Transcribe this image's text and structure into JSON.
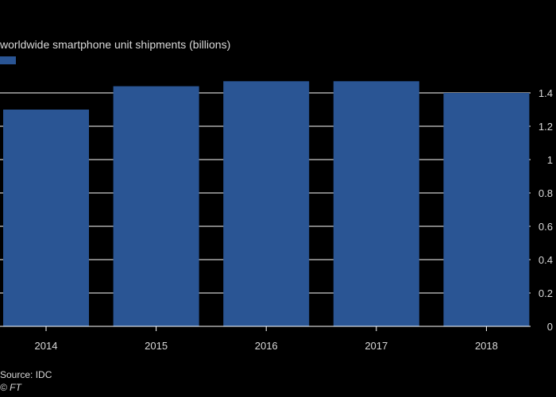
{
  "chart_data": {
    "type": "bar",
    "title": "worldwide smartphone unit shipments (billions)",
    "categories": [
      "2014",
      "2015",
      "2016",
      "2017",
      "2018"
    ],
    "values": [
      1.3,
      1.44,
      1.47,
      1.47,
      1.4
    ],
    "ylim": [
      0,
      1.5
    ],
    "yticks": [
      0,
      0.2,
      0.4,
      0.6,
      0.8,
      1,
      1.2,
      1.4
    ],
    "ytick_labels": [
      "0",
      "0.2",
      "0.4",
      "0.6",
      "0.8",
      "1",
      "1.2",
      "1.4"
    ],
    "y_axis_side": "right",
    "grid": true,
    "legend": "top-left",
    "colors": {
      "bar": "#2a5594",
      "grid": "#ffffff",
      "axis": "#ffffff",
      "background": "#000000"
    }
  },
  "footer": {
    "source": "Source: IDC",
    "credit": "© FT"
  }
}
